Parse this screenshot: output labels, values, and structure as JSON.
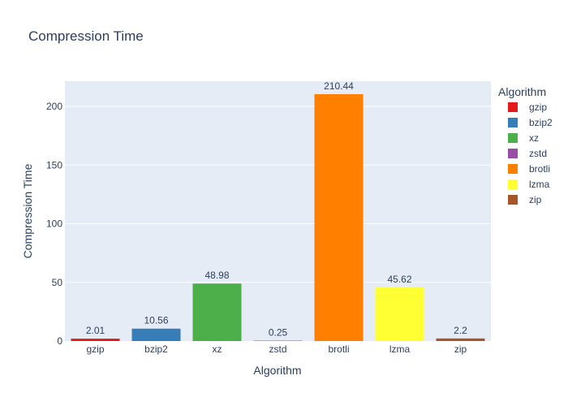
{
  "chart_data": {
    "type": "bar",
    "title": "Compression Time",
    "xlabel": "Algorithm",
    "ylabel": "Compression Time",
    "categories": [
      "gzip",
      "bzip2",
      "xz",
      "zstd",
      "brotli",
      "lzma",
      "zip"
    ],
    "values": [
      2.01,
      10.56,
      48.98,
      0.25,
      210.44,
      45.62,
      2.2
    ],
    "value_labels": [
      "2.01",
      "10.56",
      "48.98",
      "0.25",
      "210.44",
      "45.62",
      "2.2"
    ],
    "colors": [
      "#e41a1c",
      "#377eb8",
      "#4daf4a",
      "#984ea3",
      "#ff7f00",
      "#ffff33",
      "#a65628"
    ],
    "ylim": [
      0,
      221.5
    ],
    "yticks": [
      0,
      50,
      100,
      150,
      200
    ],
    "grid": true,
    "legend": {
      "title": "Algorithm",
      "placement": "right",
      "entries": [
        "gzip",
        "bzip2",
        "xz",
        "zstd",
        "brotli",
        "lzma",
        "zip"
      ]
    }
  }
}
